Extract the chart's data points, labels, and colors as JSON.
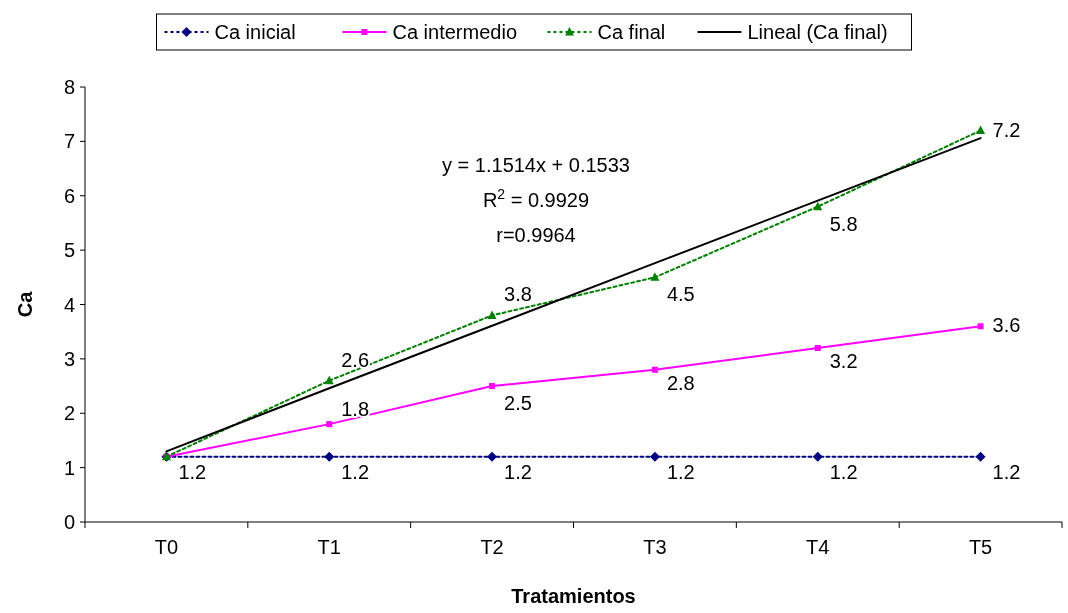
{
  "chart_data": {
    "type": "line",
    "xlabel": "Tratamientos",
    "ylabel": "Ca",
    "categories": [
      "T0",
      "T1",
      "T2",
      "T3",
      "T4",
      "T5"
    ],
    "ylim": [
      0,
      8
    ],
    "yticks": [
      0,
      1,
      2,
      3,
      4,
      5,
      6,
      7,
      8
    ],
    "grid": false,
    "legend": "top",
    "series": [
      {
        "name": "Ca inicial",
        "color": "#000080",
        "marker": "diamond",
        "line_style": "dotted",
        "values": [
          1.2,
          1.2,
          1.2,
          1.2,
          1.2,
          1.2
        ],
        "value_labels": [
          "1.2",
          "1.2",
          "1.2",
          "1.2",
          "1.2",
          "1.2"
        ]
      },
      {
        "name": "Ca intermedio",
        "color": "#ff00ff",
        "marker": "square",
        "line_style": "solid",
        "values": [
          1.2,
          1.8,
          2.5,
          2.8,
          3.2,
          3.6
        ],
        "value_labels": [
          null,
          "1.8",
          "2.5",
          "2.8",
          "3.2",
          "3.6"
        ]
      },
      {
        "name": "Ca final",
        "color": "#008000",
        "marker": "triangle",
        "line_style": "dotted",
        "values": [
          1.2,
          2.6,
          3.8,
          4.5,
          5.8,
          7.2
        ],
        "value_labels": [
          null,
          "2.6",
          "3.8",
          "4.5",
          "5.8",
          "7.2"
        ]
      },
      {
        "name": "Lineal (Ca final)",
        "color": "#000000",
        "marker": "none",
        "line_style": "solid",
        "values": [
          1.3,
          2.46,
          3.61,
          4.76,
          5.91,
          7.06
        ]
      }
    ],
    "annotations": [
      "y = 1.1514x + 0.1533",
      "R$^{2}$ = 0.9929",
      "r=0.9964"
    ]
  }
}
